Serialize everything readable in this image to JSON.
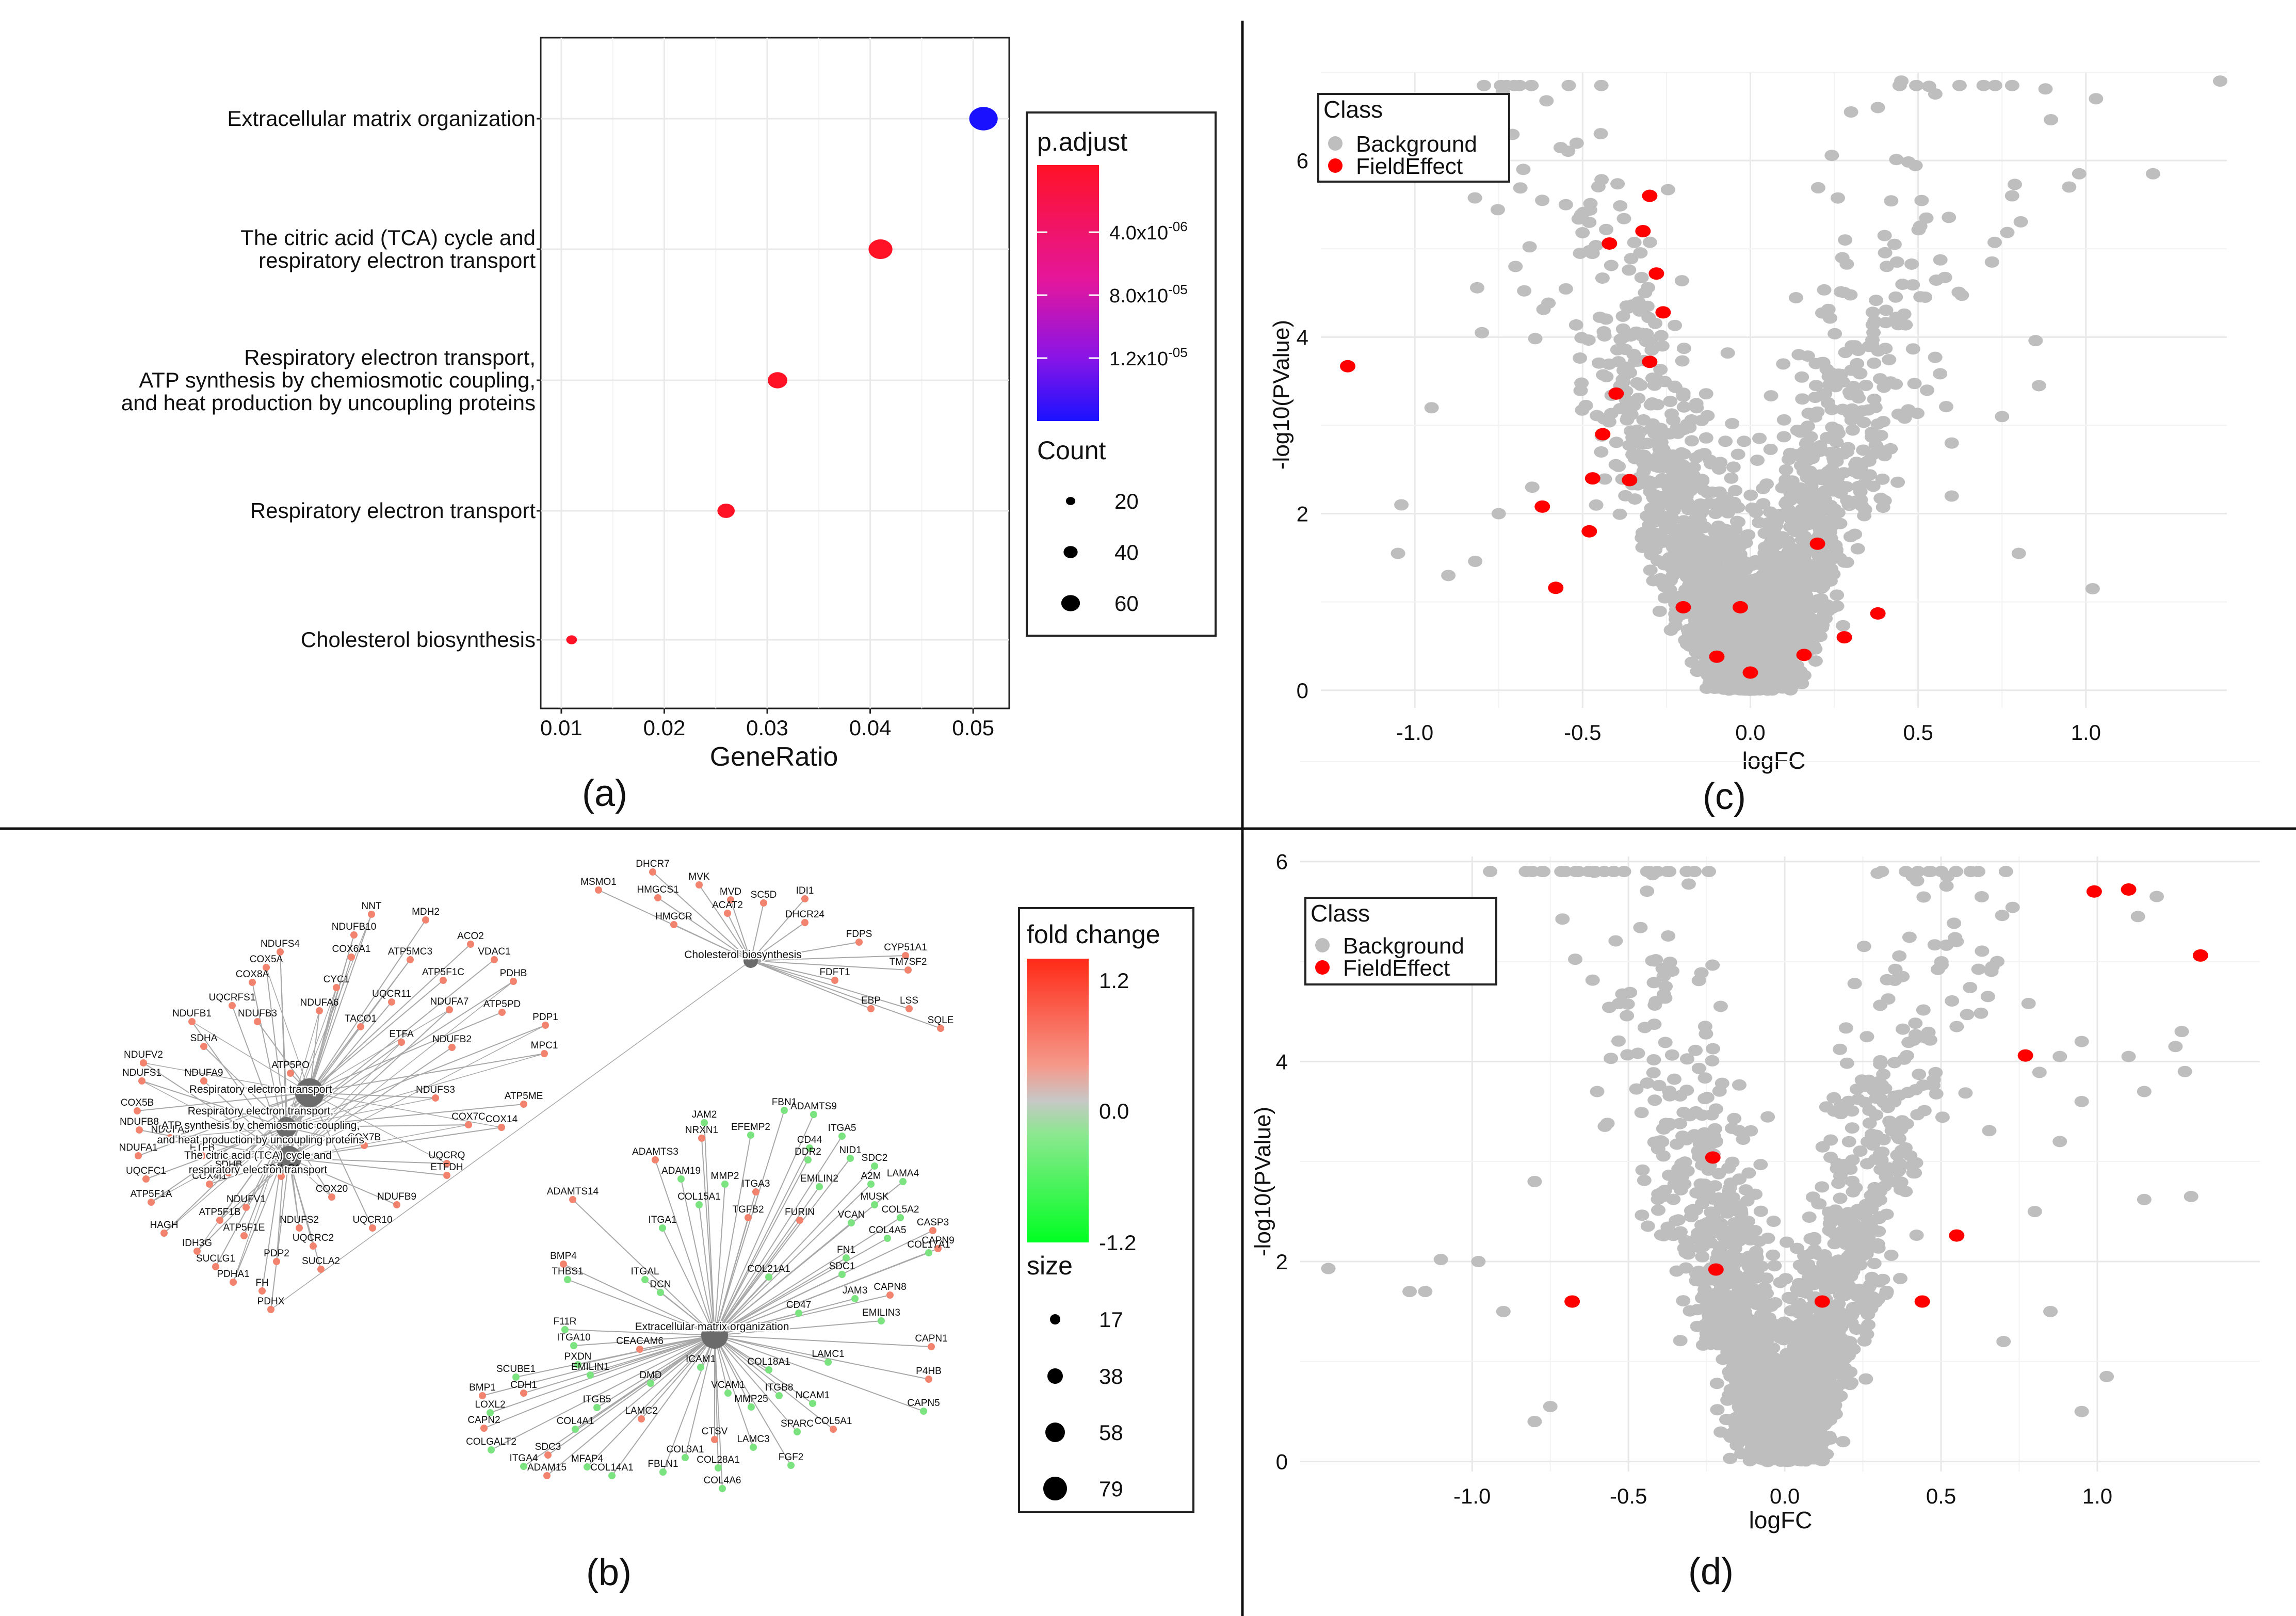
{
  "panel_labels": [
    "(a)",
    "(b)",
    "(c)",
    "(d)"
  ],
  "colors": {
    "padj_high": "#1a12ff",
    "padj_low": "#ff1226",
    "background_point": "#bebebe",
    "field_effect_point": "#ff0000",
    "fc_up": "#ff2a16",
    "fc_mid": "#c7c7c7",
    "fc_down": "#00ff22",
    "hub_node": "#6b6b6b",
    "edge": "#a8a8a8"
  },
  "chart_data": [
    {
      "id": "a",
      "type": "scatter",
      "subtype": "dotplot",
      "title": "",
      "xlabel": "GeneRatio",
      "ylabel": "",
      "xlim": [
        0.008,
        0.0535
      ],
      "xticks": [
        0.01,
        0.02,
        0.03,
        0.04,
        0.05
      ],
      "xtick_labels": [
        "0.01",
        "0.02",
        "0.03",
        "0.04",
        "0.05"
      ],
      "categories": [
        [
          "Extracellular matrix organization"
        ],
        [
          "The citric acid (TCA) cycle and",
          "respiratory electron transport"
        ],
        [
          "Respiratory electron transport,",
          "ATP synthesis by chemiosmotic coupling,",
          "and heat production by uncoupling proteins"
        ],
        [
          "Respiratory electron transport"
        ],
        [
          "Cholesterol biosynthesis"
        ]
      ],
      "values": [
        0.051,
        0.041,
        0.031,
        0.026,
        0.011
      ],
      "counts": [
        79,
        63,
        48,
        40,
        17
      ],
      "color_class": [
        "high",
        "low",
        "low",
        "low",
        "low"
      ],
      "legend": {
        "color_title": "p.adjust",
        "color_ticks": [
          "4.0x10",
          "8.0x10",
          "1.2x10"
        ],
        "color_exps": [
          "-06",
          "-05",
          "-05"
        ],
        "size_title": "Count",
        "size_ticks": [
          20,
          40,
          60
        ]
      },
      "grid": true
    },
    {
      "id": "b",
      "type": "network",
      "subtype": "cnetplot",
      "legend": {
        "color_title": "fold change",
        "color_ticks": [
          "1.2",
          "0.0",
          "-1.2"
        ],
        "size_title": "size",
        "size_ticks": [
          17,
          38,
          58,
          79
        ]
      },
      "hub_labels": {
        "resp": [
          "Respiratory electron transport"
        ],
        "atp": [
          "Respiratory electron transport,",
          "ATP synthesis by chemiosmotic coupling,",
          "and heat production by uncoupling proteins"
        ],
        "tca": [
          "The citric acid (TCA) cycle and",
          "respiratory electron transport"
        ],
        "chol": [
          "Cholesterol biosynthesis"
        ],
        "ecm": [
          "Extracellular matrix organization"
        ]
      },
      "genes": [
        [
          "NNT",
          "up"
        ],
        [
          "MDH2",
          "up"
        ],
        [
          "NDUFB10",
          "up"
        ],
        [
          "ACO2",
          "up"
        ],
        [
          "NDUFS4",
          "up"
        ],
        [
          "COX6A1",
          "up"
        ],
        [
          "ATP5MC3",
          "up"
        ],
        [
          "VDAC1",
          "up"
        ],
        [
          "COX5A",
          "up"
        ],
        [
          "ATP5F1C",
          "up"
        ],
        [
          "PDHB",
          "up"
        ],
        [
          "COX8A",
          "up"
        ],
        [
          "CYC1",
          "up"
        ],
        [
          "UQCR11",
          "up"
        ],
        [
          "NDUFA7",
          "up"
        ],
        [
          "ATP5PD",
          "up"
        ],
        [
          "PDP1",
          "up"
        ],
        [
          "UQCRFS1",
          "up"
        ],
        [
          "NDUFA6",
          "up"
        ],
        [
          "TACO1",
          "up"
        ],
        [
          "NDUFB1",
          "up"
        ],
        [
          "NDUFB3",
          "up"
        ],
        [
          "ETFA",
          "up"
        ],
        [
          "NDUFB2",
          "up"
        ],
        [
          "MPC1",
          "up"
        ],
        [
          "SDHA",
          "up"
        ],
        [
          "NDUFV2",
          "up"
        ],
        [
          "ATP5PO",
          "up"
        ],
        [
          "NDUFS1",
          "up"
        ],
        [
          "NDUFA9",
          "up"
        ],
        [
          "NDUFS3",
          "up"
        ],
        [
          "ATP5ME",
          "up"
        ],
        [
          "COX14",
          "up"
        ],
        [
          "COX5B",
          "up"
        ],
        [
          "COX7C",
          "up"
        ],
        [
          "NDUFB8",
          "up"
        ],
        [
          "NDUFA3",
          "up"
        ],
        [
          "COX7B",
          "up"
        ],
        [
          "UQCRQ",
          "up"
        ],
        [
          "NDUFA1",
          "up"
        ],
        [
          "ETFB",
          "up"
        ],
        [
          "ETFDH",
          "up"
        ],
        [
          "SDHB",
          "up"
        ],
        [
          "UQCFC1",
          "up"
        ],
        [
          "COX4I1",
          "up"
        ],
        [
          "COX6B1",
          "up"
        ],
        [
          "COX20",
          "up"
        ],
        [
          "NDUFB9",
          "up"
        ],
        [
          "ATP5F1A",
          "up"
        ],
        [
          "NDUFV1",
          "up"
        ],
        [
          "ATP5F1B",
          "up"
        ],
        [
          "UQCR10",
          "up"
        ],
        [
          "NDUFS2",
          "up"
        ],
        [
          "UQCRC2",
          "up"
        ],
        [
          "HAGH",
          "up"
        ],
        [
          "ATP5F1E",
          "up"
        ],
        [
          "IDH3G",
          "up"
        ],
        [
          "SUCLG1",
          "up"
        ],
        [
          "PDP2",
          "up"
        ],
        [
          "SUCLA2",
          "up"
        ],
        [
          "PDHA1",
          "up"
        ],
        [
          "FH",
          "up"
        ],
        [
          "PDHX",
          "up"
        ],
        [
          "DHCR7",
          "up"
        ],
        [
          "MVK",
          "up"
        ],
        [
          "MSMO1",
          "up"
        ],
        [
          "HMGCS1",
          "up"
        ],
        [
          "MVD",
          "up"
        ],
        [
          "SC5D",
          "up"
        ],
        [
          "IDI1",
          "up"
        ],
        [
          "ACAT2",
          "up"
        ],
        [
          "DHCR24",
          "up"
        ],
        [
          "HMGCR",
          "up"
        ],
        [
          "FDPS",
          "up"
        ],
        [
          "CYP51A1",
          "up"
        ],
        [
          "TM7SF2",
          "up"
        ],
        [
          "FDFT1",
          "up"
        ],
        [
          "EBP",
          "up"
        ],
        [
          "LSS",
          "up"
        ],
        [
          "SQLE",
          "up"
        ],
        [
          "FBN1",
          "down"
        ],
        [
          "ADAMTS9",
          "down"
        ],
        [
          "JAM2",
          "down"
        ],
        [
          "NRXN1",
          "up"
        ],
        [
          "EFEMP2",
          "down"
        ],
        [
          "ITGA5",
          "down"
        ],
        [
          "CD44",
          "down"
        ],
        [
          "NID1",
          "down"
        ],
        [
          "ADAMTS3",
          "up"
        ],
        [
          "DDR2",
          "down"
        ],
        [
          "SDC2",
          "down"
        ],
        [
          "ADAM19",
          "down"
        ],
        [
          "MMP2",
          "down"
        ],
        [
          "ITGA3",
          "up"
        ],
        [
          "EMILIN2",
          "down"
        ],
        [
          "A2M",
          "down"
        ],
        [
          "LAMA4",
          "down"
        ],
        [
          "ADAMTS14",
          "up"
        ],
        [
          "COL15A1",
          "down"
        ],
        [
          "MUSK",
          "down"
        ],
        [
          "COL5A2",
          "down"
        ],
        [
          "ITGA1",
          "down"
        ],
        [
          "TGFB2",
          "up"
        ],
        [
          "FURIN",
          "up"
        ],
        [
          "VCAN",
          "down"
        ],
        [
          "CASP3",
          "up"
        ],
        [
          "CAPN9",
          "up"
        ],
        [
          "BMP4",
          "up"
        ],
        [
          "COL4A5",
          "down"
        ],
        [
          "THBS1",
          "down"
        ],
        [
          "ITGAL",
          "down"
        ],
        [
          "DCN",
          "down"
        ],
        [
          "COL21A1",
          "down"
        ],
        [
          "FN1",
          "down"
        ],
        [
          "COL17A1",
          "down"
        ],
        [
          "SDC1",
          "down"
        ],
        [
          "JAM3",
          "down"
        ],
        [
          "CAPN8",
          "up"
        ],
        [
          "F11R",
          "down"
        ],
        [
          "ITGA10",
          "down"
        ],
        [
          "CD47",
          "down"
        ],
        [
          "EMILIN3",
          "down"
        ],
        [
          "CEACAM6",
          "up"
        ],
        [
          "CAPN1",
          "up"
        ],
        [
          "PXDN",
          "down"
        ],
        [
          "LAMC1",
          "down"
        ],
        [
          "ICAM1",
          "down"
        ],
        [
          "COL18A1",
          "down"
        ],
        [
          "P4HB",
          "up"
        ],
        [
          "SCUBE1",
          "down"
        ],
        [
          "EMILIN1",
          "down"
        ],
        [
          "DMD",
          "down"
        ],
        [
          "BMP1",
          "up"
        ],
        [
          "CDH1",
          "up"
        ],
        [
          "VCAM1",
          "down"
        ],
        [
          "ITGB8",
          "down"
        ],
        [
          "NCAM1",
          "down"
        ],
        [
          "CAPN5",
          "down"
        ],
        [
          "LOXL2",
          "down"
        ],
        [
          "ITGB5",
          "down"
        ],
        [
          "MMP25",
          "down"
        ],
        [
          "COL5A1",
          "up"
        ],
        [
          "CAPN2",
          "up"
        ],
        [
          "COL4A1",
          "down"
        ],
        [
          "LAMC2",
          "up"
        ],
        [
          "CTSV",
          "up"
        ],
        [
          "SPARC",
          "down"
        ],
        [
          "COLGALT2",
          "down"
        ],
        [
          "SDC3",
          "up"
        ],
        [
          "COL3A1",
          "down"
        ],
        [
          "LAMC3",
          "down"
        ],
        [
          "COL28A1",
          "down"
        ],
        [
          "FGF2",
          "down"
        ],
        [
          "MFAP4",
          "down"
        ],
        [
          "ITGA4",
          "down"
        ],
        [
          "FBLN1",
          "down"
        ],
        [
          "COL4A6",
          "down"
        ],
        [
          "ADAM15",
          "up"
        ],
        [
          "COL14A1",
          "down"
        ]
      ]
    },
    {
      "id": "c",
      "type": "scatter",
      "subtype": "volcano",
      "xlabel": "logFC",
      "ylabel": "-log10(PValue)",
      "xlim": [
        -1.28,
        1.42
      ],
      "ylim": [
        -0.2,
        7.0
      ],
      "xticks": [
        -1.0,
        -0.5,
        0.0,
        0.5,
        1.0
      ],
      "xtick_labels": [
        "-1.0",
        "-0.5",
        "0.0",
        "0.5",
        "1.0"
      ],
      "yticks": [
        0,
        2,
        4,
        6
      ],
      "ytick_labels": [
        "0",
        "2",
        "4",
        "6"
      ],
      "legend": {
        "title": "Class",
        "entries": [
          "Background",
          "FieldEffect"
        ]
      },
      "series": [
        {
          "name": "Background",
          "note": "approximately 3000 genes forming a V-shaped volcano, symmetric around logFC 0"
        },
        {
          "name": "FieldEffect",
          "points": [
            [
              -1.2,
              3.67
            ],
            [
              -0.62,
              2.08
            ],
            [
              -0.58,
              1.16
            ],
            [
              -0.3,
              5.6
            ],
            [
              -0.32,
              5.2
            ],
            [
              -0.42,
              5.06
            ],
            [
              -0.28,
              4.72
            ],
            [
              -0.26,
              4.28
            ],
            [
              -0.3,
              3.72
            ],
            [
              -0.4,
              3.36
            ],
            [
              -0.44,
              2.9
            ],
            [
              -0.47,
              2.4
            ],
            [
              -0.36,
              2.38
            ],
            [
              -0.48,
              1.8
            ],
            [
              -0.2,
              0.94
            ],
            [
              -0.03,
              0.94
            ],
            [
              0.2,
              1.66
            ],
            [
              0.38,
              0.87
            ],
            [
              0.28,
              0.6
            ],
            [
              0.16,
              0.4
            ],
            [
              -0.1,
              0.38
            ],
            [
              0.0,
              0.2
            ]
          ]
        }
      ]
    },
    {
      "id": "d",
      "type": "scatter",
      "subtype": "volcano",
      "xlabel": "logFC",
      "ylabel": "-log10(PValue)",
      "xlim": [
        -1.55,
        1.52
      ],
      "ylim": [
        -0.1,
        6.05
      ],
      "xticks": [
        -1.0,
        -0.5,
        0.0,
        0.5,
        1.0
      ],
      "xtick_labels": [
        "-1.0",
        "-0.5",
        "0.0",
        "0.5",
        "1.0"
      ],
      "yticks": [
        0,
        2,
        4,
        6
      ],
      "ytick_labels": [
        "0",
        "2",
        "4",
        "6"
      ],
      "legend": {
        "title": "Class",
        "entries": [
          "Background",
          "FieldEffect"
        ]
      },
      "series": [
        {
          "name": "Background",
          "note": "approximately 2600 genes forming a V-shaped volcano, symmetric around logFC 0"
        },
        {
          "name": "FieldEffect",
          "points": [
            [
              1.1,
              5.72
            ],
            [
              0.99,
              5.7
            ],
            [
              1.33,
              5.06
            ],
            [
              0.77,
              4.06
            ],
            [
              -0.23,
              3.04
            ],
            [
              0.55,
              2.26
            ],
            [
              -0.68,
              1.6
            ],
            [
              0.44,
              1.6
            ],
            [
              -0.22,
              1.92
            ],
            [
              0.12,
              1.6
            ]
          ]
        }
      ]
    }
  ]
}
